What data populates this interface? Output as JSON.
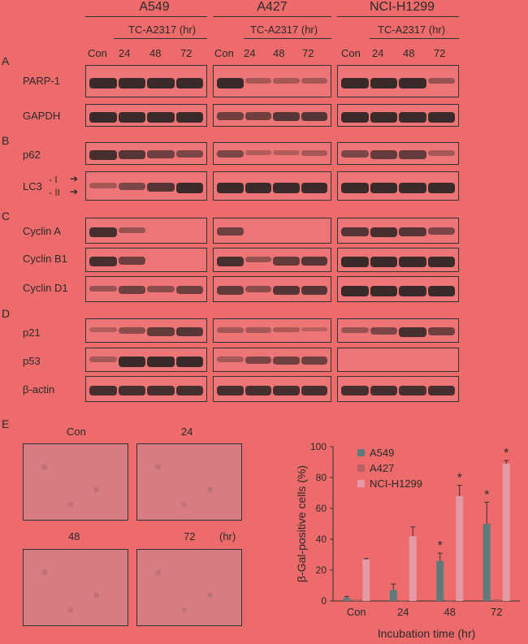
{
  "cell_lines": [
    "A549",
    "A427",
    "NCI-H1299"
  ],
  "treatment_label": "TC-A2317 (hr)",
  "lanes": [
    "Con",
    "24",
    "48",
    "72"
  ],
  "panels": [
    {
      "letter": "A",
      "rows": [
        "PARP-1",
        "GAPDH"
      ]
    },
    {
      "letter": "B",
      "rows": [
        "p62",
        "LC3"
      ]
    },
    {
      "letter": "C",
      "rows": [
        "Cyclin A",
        "Cyclin B1",
        "Cyclin D1"
      ]
    },
    {
      "letter": "D",
      "rows": [
        "p21",
        "p53",
        "β-actin"
      ]
    }
  ],
  "lc3_markers": [
    "- I",
    "- II"
  ],
  "panel_e": {
    "letter": "E",
    "image_labels": [
      "Con",
      "24",
      "48",
      "72"
    ],
    "unit_label": "(hr)"
  },
  "chart_data": {
    "type": "bar",
    "categories": [
      "Con",
      "24",
      "48",
      "72"
    ],
    "series": [
      {
        "name": "A549",
        "values": [
          2,
          7,
          26,
          50
        ],
        "errors": [
          1,
          4,
          5,
          14
        ],
        "color": "#5f7a7a"
      },
      {
        "name": "A427",
        "values": [
          1,
          0.5,
          0.5,
          1
        ],
        "errors": [
          0,
          0,
          0,
          0
        ],
        "color": "#b85f6a"
      },
      {
        "name": "NCI-H1299",
        "values": [
          27,
          42,
          68,
          89
        ],
        "errors": [
          0.5,
          6,
          7,
          2
        ],
        "color": "#e39aa4"
      }
    ],
    "significance": [
      "",
      "",
      "*",
      "*"
    ],
    "significance_series": [
      [],
      [],
      [
        "A549",
        "NCI-H1299"
      ],
      [
        "A549",
        "NCI-H1299"
      ]
    ],
    "xlabel": "Incubation time (hr)",
    "ylabel": "β-Gal-positive cells  (%)",
    "ylim": [
      0,
      100
    ],
    "yticks": [
      0,
      20,
      40,
      60,
      80,
      100
    ],
    "legend_position": "top-left",
    "grid": false
  }
}
